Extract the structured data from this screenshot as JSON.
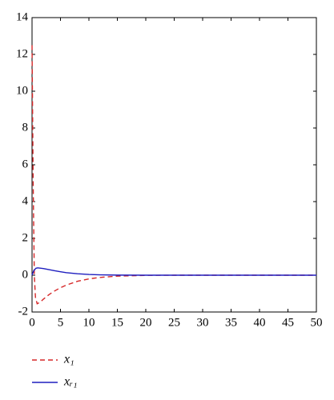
{
  "chart_data": {
    "type": "line",
    "series": [
      {
        "name": "x₁",
        "color": "#d62728",
        "dash": true,
        "x": [
          0,
          0.2,
          0.4,
          0.6,
          0.9,
          1.5,
          2,
          3,
          4,
          5,
          6,
          8,
          10,
          12,
          15,
          20,
          25,
          50
        ],
        "values": [
          12.5,
          5,
          0,
          -1.2,
          -1.55,
          -1.45,
          -1.3,
          -1.05,
          -0.85,
          -0.68,
          -0.54,
          -0.33,
          -0.2,
          -0.12,
          -0.05,
          -0.01,
          0,
          0
        ]
      },
      {
        "name": "xᵣ₁",
        "color": "#1f1fbf",
        "dash": false,
        "x": [
          0,
          0.3,
          0.7,
          1,
          2,
          3,
          4,
          5,
          6,
          8,
          10,
          12,
          15,
          20,
          50
        ],
        "values": [
          0,
          0.25,
          0.38,
          0.4,
          0.36,
          0.3,
          0.24,
          0.19,
          0.14,
          0.08,
          0.04,
          0.02,
          0.005,
          0,
          0
        ]
      }
    ],
    "xlim": [
      0,
      50
    ],
    "xticks": [
      0,
      5,
      10,
      15,
      20,
      25,
      30,
      35,
      40,
      45,
      50
    ],
    "ylim": [
      -2,
      14
    ],
    "yticks": [
      -2,
      0,
      2,
      4,
      6,
      8,
      10,
      12,
      14
    ],
    "grid": false
  }
}
